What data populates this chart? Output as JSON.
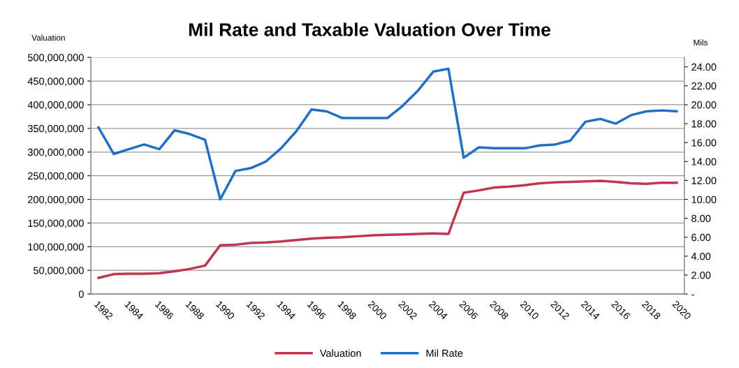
{
  "chart_data": {
    "type": "line",
    "title": "Mil Rate and Taxable Valuation Over Time",
    "ylabel": "Valuation",
    "y2label": "Mils",
    "categories": [
      "1982",
      null,
      "1984",
      null,
      "1986",
      null,
      "1988",
      null,
      "1990",
      null,
      "1992",
      null,
      "1994",
      null,
      "1996",
      null,
      "1998",
      null,
      "2000",
      null,
      "2002",
      null,
      "2004",
      null,
      "2006",
      null,
      "2008",
      null,
      "2010",
      null,
      "2012",
      null,
      "2014",
      null,
      "2016",
      null,
      "2018",
      null,
      "2020"
    ],
    "series": [
      {
        "name": "Valuation",
        "color": "#c0364e",
        "values": [
          34000000,
          42000000,
          43000000,
          43000000,
          44000000,
          48000000,
          53000000,
          60000000,
          103000000,
          104000000,
          108000000,
          109000000,
          111000000,
          114000000,
          117000000,
          119000000,
          120000000,
          122000000,
          124000000,
          125000000,
          126000000,
          127000000,
          128000000,
          127000000,
          214000000,
          219000000,
          225000000,
          227000000,
          230000000,
          234000000,
          236000000,
          237000000,
          238000000,
          239000000,
          237000000,
          234000000,
          233000000,
          235000000,
          235000000
        ]
      },
      {
        "name": "Mil Rate",
        "color": "#1f6fc5",
        "axis": "y2",
        "values": [
          17.6,
          14.8,
          15.3,
          15.8,
          15.3,
          17.3,
          16.9,
          16.3,
          10.0,
          13.0,
          13.3,
          14.0,
          15.4,
          17.2,
          19.5,
          19.3,
          18.6,
          18.6,
          18.6,
          18.6,
          19.9,
          21.5,
          23.5,
          23.8,
          14.4,
          15.5,
          15.4,
          15.4,
          15.4,
          15.7,
          15.8,
          16.2,
          18.2,
          18.5,
          18.0,
          18.9,
          19.3,
          19.4,
          19.3
        ]
      }
    ],
    "ylim": [
      0,
      500000000
    ],
    "yticks": [
      {
        "value": 0,
        "label": "0"
      },
      {
        "value": 50000000,
        "label": "50,000,000"
      },
      {
        "value": 100000000,
        "label": "100,000,000"
      },
      {
        "value": 150000000,
        "label": "150,000,000"
      },
      {
        "value": 200000000,
        "label": "200,000,000"
      },
      {
        "value": 250000000,
        "label": "250,000,000"
      },
      {
        "value": 300000000,
        "label": "300,000,000"
      },
      {
        "value": 350000000,
        "label": "350,000,000"
      },
      {
        "value": 400000000,
        "label": "400,000,000"
      },
      {
        "value": 450000000,
        "label": "450,000,000"
      },
      {
        "value": 500000000,
        "label": "500,000,000"
      }
    ],
    "y2lim": [
      0,
      25
    ],
    "y2ticks": [
      {
        "value": 0,
        "label": "-"
      },
      {
        "value": 2,
        "label": "2.00"
      },
      {
        "value": 4,
        "label": "4.00"
      },
      {
        "value": 6,
        "label": "6.00"
      },
      {
        "value": 8,
        "label": "8.00"
      },
      {
        "value": 10,
        "label": "10.00"
      },
      {
        "value": 12,
        "label": "12.00"
      },
      {
        "value": 14,
        "label": "14.00"
      },
      {
        "value": 16,
        "label": "16.00"
      },
      {
        "value": 18,
        "label": "18.00"
      },
      {
        "value": 20,
        "label": "20.00"
      },
      {
        "value": 22,
        "label": "22.00"
      },
      {
        "value": 24,
        "label": "24.00"
      }
    ],
    "grid": "y",
    "legend": "bottom",
    "marker": "none",
    "line_style": "solid"
  }
}
